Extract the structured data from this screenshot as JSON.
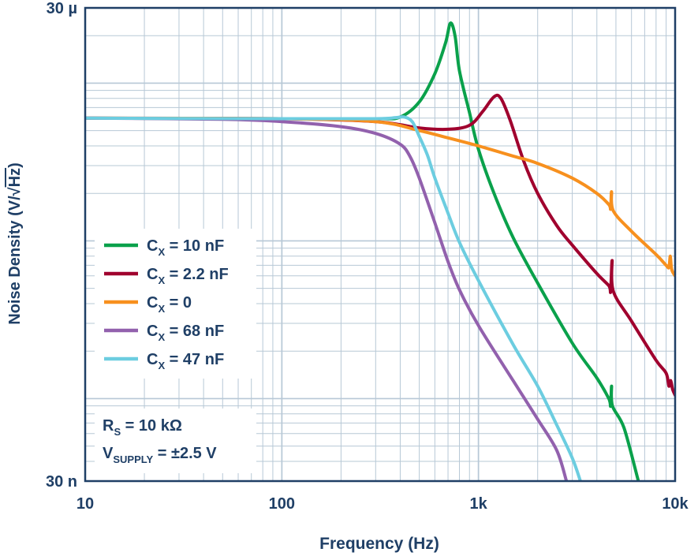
{
  "chart_data": {
    "type": "line",
    "x_scale": "log",
    "y_scale": "log",
    "xlim": [
      10,
      10000
    ],
    "ylim": [
      3e-08,
      3e-05
    ],
    "xlabel": "Frequency (Hz)",
    "ylabel_parts": {
      "main": "Noise Density (V/",
      "root_sign": "√",
      "root_arg": "Hz",
      "close": ")"
    },
    "x_ticks": [
      {
        "value": 10,
        "label": "10"
      },
      {
        "value": 100,
        "label": "100"
      },
      {
        "value": 1000,
        "label": "1k"
      },
      {
        "value": 10000,
        "label": "10k"
      }
    ],
    "y_ticks": [
      {
        "value": 3e-05,
        "label": "30 µ"
      },
      {
        "value": 3e-08,
        "label": "30 n"
      }
    ],
    "grid": true,
    "legend_position": "left",
    "series": [
      {
        "name_main": "C",
        "name_sub": "X",
        "name_rest": " = 10 nF",
        "color": "#0aa14b",
        "points": [
          [
            10,
            6e-06
          ],
          [
            100,
            5.95e-06
          ],
          [
            300,
            5.95e-06
          ],
          [
            400,
            6.1e-06
          ],
          [
            500,
            7.6e-06
          ],
          [
            600,
            1.15e-05
          ],
          [
            680,
            1.8e-05
          ],
          [
            720,
            2.4e-05
          ],
          [
            760,
            2e-05
          ],
          [
            800,
            1.2e-05
          ],
          [
            900,
            6.5e-06
          ],
          [
            1000,
            3.8e-06
          ],
          [
            1200,
            2e-06
          ],
          [
            1500,
            1.05e-06
          ],
          [
            2000,
            5.4e-07
          ],
          [
            3000,
            2.25e-07
          ],
          [
            4000,
            1.35e-07
          ],
          [
            4600,
            1e-07
          ],
          [
            4700,
            9e-08
          ],
          [
            4750,
            1.2e-07
          ],
          [
            4800,
            9e-08
          ],
          [
            5500,
            6.5e-08
          ],
          [
            6500,
            3e-08
          ]
        ]
      },
      {
        "name_main": "C",
        "name_sub": "X",
        "name_rest": " = 2.2 nF",
        "color": "#a0002e",
        "points": [
          [
            10,
            6e-06
          ],
          [
            100,
            5.95e-06
          ],
          [
            300,
            5.7e-06
          ],
          [
            500,
            5.2e-06
          ],
          [
            700,
            5.1e-06
          ],
          [
            900,
            5.4e-06
          ],
          [
            1050,
            6.6e-06
          ],
          [
            1200,
            8.2e-06
          ],
          [
            1300,
            8e-06
          ],
          [
            1450,
            5.8e-06
          ],
          [
            1700,
            3.2e-06
          ],
          [
            2000,
            2e-06
          ],
          [
            2500,
            1.25e-06
          ],
          [
            3000,
            9.4e-07
          ],
          [
            4000,
            6.2e-07
          ],
          [
            4600,
            5.2e-07
          ],
          [
            4700,
            4.8e-07
          ],
          [
            4780,
            7.5e-07
          ],
          [
            4850,
            4.8e-07
          ],
          [
            6000,
            3.1e-07
          ],
          [
            8000,
            1.75e-07
          ],
          [
            9000,
            1.45e-07
          ],
          [
            9300,
            1.2e-07
          ],
          [
            9500,
            1.3e-07
          ],
          [
            9700,
            1.15e-07
          ],
          [
            10000,
            1.05e-07
          ]
        ]
      },
      {
        "name_main": "C",
        "name_sub": "X",
        "name_rest": " = 0",
        "color": "#f7901e",
        "points": [
          [
            10,
            6e-06
          ],
          [
            100,
            5.95e-06
          ],
          [
            300,
            5.7e-06
          ],
          [
            500,
            5e-06
          ],
          [
            700,
            4.5e-06
          ],
          [
            1000,
            4e-06
          ],
          [
            1500,
            3.45e-06
          ],
          [
            2000,
            3.1e-06
          ],
          [
            3000,
            2.5e-06
          ],
          [
            4000,
            2e-06
          ],
          [
            4600,
            1.7e-06
          ],
          [
            4700,
            1.6e-06
          ],
          [
            4750,
            2.05e-06
          ],
          [
            4850,
            1.55e-06
          ],
          [
            6000,
            1.15e-06
          ],
          [
            8000,
            8.2e-07
          ],
          [
            9000,
            7e-07
          ],
          [
            9300,
            6.8e-07
          ],
          [
            9450,
            8e-07
          ],
          [
            9600,
            6.6e-07
          ],
          [
            10000,
            6e-07
          ]
        ]
      },
      {
        "name_main": "C",
        "name_sub": "X",
        "name_rest": " = 68 nF",
        "color": "#9261ad",
        "points": [
          [
            10,
            6e-06
          ],
          [
            50,
            5.9e-06
          ],
          [
            100,
            5.7e-06
          ],
          [
            200,
            5.3e-06
          ],
          [
            300,
            4.8e-06
          ],
          [
            400,
            4.1e-06
          ],
          [
            450,
            3.4e-06
          ],
          [
            500,
            2.5e-06
          ],
          [
            600,
            1.3e-06
          ],
          [
            700,
            7.4e-07
          ],
          [
            800,
            4.9e-07
          ],
          [
            1000,
            2.9e-07
          ],
          [
            1500,
            1.3e-07
          ],
          [
            2000,
            7.4e-08
          ],
          [
            2500,
            4.7e-08
          ],
          [
            2800,
            3e-08
          ]
        ]
      },
      {
        "name_main": "C",
        "name_sub": "X",
        "name_rest": " = 47 nF",
        "color": "#6ccde0",
        "points": [
          [
            10,
            6e-06
          ],
          [
            100,
            5.95e-06
          ],
          [
            300,
            5.95e-06
          ],
          [
            380,
            6.05e-06
          ],
          [
            420,
            6.1e-06
          ],
          [
            460,
            5.7e-06
          ],
          [
            500,
            4.6e-06
          ],
          [
            550,
            3.5e-06
          ],
          [
            600,
            2.5e-06
          ],
          [
            700,
            1.5e-06
          ],
          [
            800,
            9.8e-07
          ],
          [
            1000,
            5.6e-07
          ],
          [
            1500,
            2.2e-07
          ],
          [
            2000,
            1.2e-07
          ],
          [
            2500,
            6.8e-08
          ],
          [
            3000,
            4.2e-08
          ],
          [
            3300,
            3e-08
          ]
        ]
      }
    ]
  },
  "annotation": {
    "lines": [
      {
        "main": "R",
        "sub": "S",
        "rest": " = 10 kΩ"
      },
      {
        "main": "V",
        "sub": "SUPPLY",
        "rest": " = ±2.5 V"
      }
    ]
  },
  "colors": {
    "axis": "#1f3f66",
    "grid": "#b7c8d6",
    "text": "#1f3f66"
  }
}
